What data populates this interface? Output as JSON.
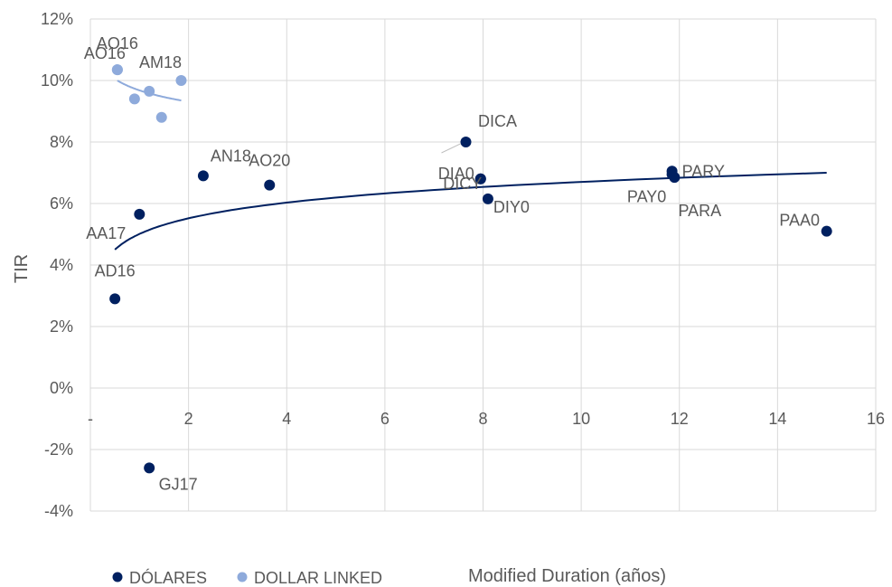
{
  "chart_data": {
    "type": "scatter",
    "xlabel": "Modified Duration (años)",
    "ylabel": "TIR",
    "xlim": [
      0,
      16
    ],
    "ylim": [
      -4,
      12
    ],
    "x_ticks": [
      0,
      2,
      4,
      6,
      8,
      10,
      12,
      14,
      16
    ],
    "x_tick_labels": [
      "-",
      "2",
      "4",
      "6",
      "8",
      "10",
      "12",
      "14",
      "16"
    ],
    "y_ticks": [
      -4,
      -2,
      0,
      2,
      4,
      6,
      8,
      10,
      12
    ],
    "y_tick_labels": [
      "-4%",
      "-2%",
      "0%",
      "2%",
      "4%",
      "6%",
      "8%",
      "10%",
      "12%"
    ],
    "grid": true,
    "legend_position": "bottom-left",
    "series": [
      {
        "name": "DÓLARES",
        "color": "#002060",
        "points": [
          {
            "label": "AD16",
            "x": 0.5,
            "y": 2.9
          },
          {
            "label": "AA17",
            "x": 1.0,
            "y": 5.65
          },
          {
            "label": "GJ17",
            "x": 1.2,
            "y": -2.6
          },
          {
            "label": "AN18",
            "x": 2.3,
            "y": 6.9
          },
          {
            "label": "AO20",
            "x": 3.65,
            "y": 6.6
          },
          {
            "label": "DICA",
            "x": 7.65,
            "y": 8.0
          },
          {
            "label": "DIA0",
            "x": 7.95,
            "y": 6.8
          },
          {
            "label": "DICY",
            "x": 7.95,
            "y": 6.8
          },
          {
            "label": "DIY0",
            "x": 8.1,
            "y": 6.15
          },
          {
            "label": "PARY",
            "x": 11.85,
            "y": 7.05
          },
          {
            "label": "PAY0",
            "x": 11.85,
            "y": 6.95
          },
          {
            "label": "PARA",
            "x": 11.9,
            "y": 6.85
          },
          {
            "label": "PAA0",
            "x": 15.0,
            "y": 5.1
          }
        ],
        "trendline": {
          "type": "logarithmic",
          "x_range": [
            0.5,
            15.0
          ],
          "y_at_start": 4.5,
          "y_at_end": 7.0
        }
      },
      {
        "name": "DOLLAR LINKED",
        "color": "#8EAADB",
        "points": [
          {
            "label": "AO16",
            "x": 0.55,
            "y": 10.35
          },
          {
            "label": "AO16",
            "x": 0.55,
            "y": 10.35
          },
          {
            "label": "",
            "x": 0.9,
            "y": 9.4
          },
          {
            "label": "",
            "x": 1.2,
            "y": 9.65
          },
          {
            "label": "",
            "x": 1.45,
            "y": 8.8
          },
          {
            "label": "AM18",
            "x": 1.85,
            "y": 10.0
          }
        ],
        "trendline": {
          "type": "logarithmic",
          "x_range": [
            0.55,
            1.85
          ],
          "y_at_start": 10.0,
          "y_at_end": 9.35
        }
      }
    ]
  }
}
